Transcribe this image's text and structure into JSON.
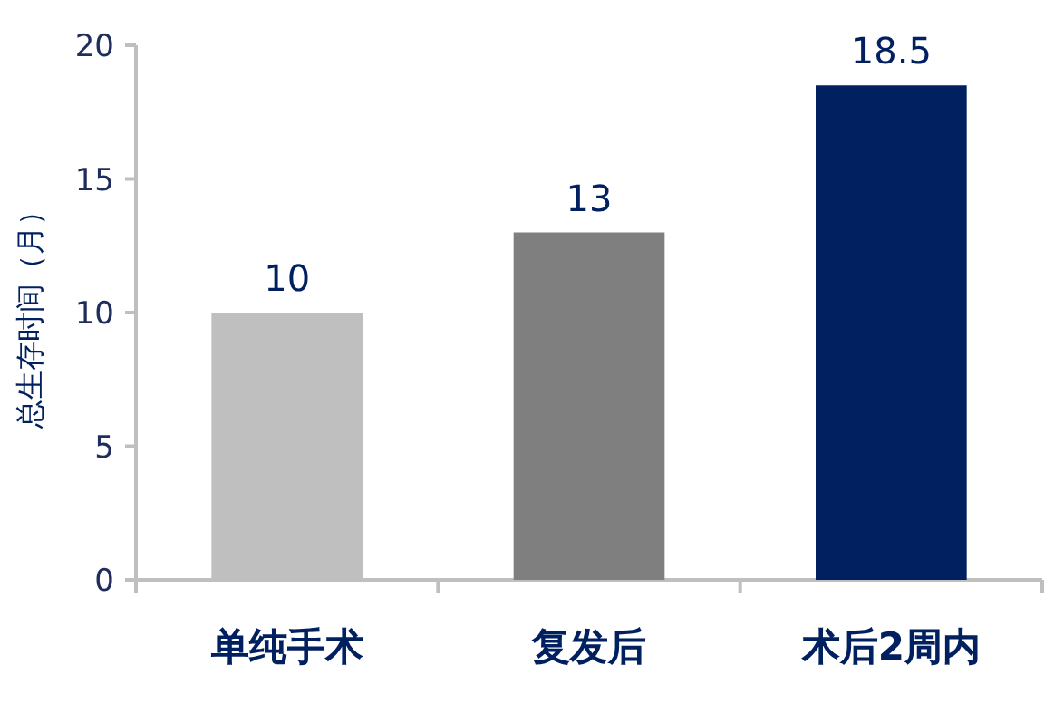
{
  "chart_data": {
    "type": "bar",
    "ylabel": "总生存时间（月）",
    "categories": [
      "单纯手术",
      "复发后",
      "术后2周内"
    ],
    "values": [
      10,
      13,
      18.5
    ],
    "colors": [
      "#bfbfbf",
      "#7f7f7f",
      "#002060"
    ],
    "ylim": [
      0,
      20
    ],
    "yticks": [
      0,
      5,
      10,
      15,
      20
    ],
    "data_labels": true
  }
}
